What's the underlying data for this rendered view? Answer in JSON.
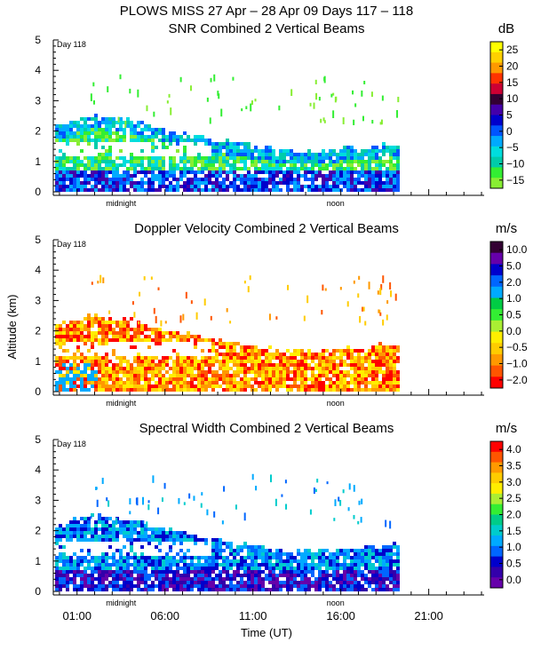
{
  "figure": {
    "title": "PLOWS MISS  27 Apr – 28 Apr 09 Days 117 – 118",
    "ylabel": "Altitude (km)",
    "xlabel": "Time (UT)",
    "x_ticks": [
      "01:00",
      "06:00",
      "11:00",
      "16:00",
      "21:00"
    ],
    "x_tick_hours": [
      1,
      6,
      11,
      16,
      21
    ],
    "markers": [
      "midnight",
      "noon"
    ],
    "day_label": "Day 118",
    "y_ticks": [
      "0",
      "1",
      "2",
      "3",
      "4",
      "5"
    ]
  },
  "chart_data": [
    {
      "type": "heatmap",
      "title": "SNR Combined 2 Vertical Beams",
      "units": "dB",
      "xlabel": "",
      "ylabel": "",
      "xlim": [
        0,
        24
      ],
      "ylim": [
        0,
        5
      ],
      "colorbar_ticks": [
        "25",
        "20",
        "15",
        "10",
        "5",
        "0",
        "−5",
        "−10",
        "−15"
      ],
      "colorbar_values": [
        25,
        20,
        15,
        10,
        5,
        0,
        -5,
        -10,
        -15
      ],
      "colors": [
        "#ffff00",
        "#ffd000",
        "#ff9900",
        "#ff3300",
        "#cc0033",
        "#330033",
        "#4400aa",
        "#0000cc",
        "#0055ff",
        "#00aaff",
        "#00dddd",
        "#00ccaa",
        "#33ee33",
        "#88ee33"
      ],
      "data_top_km": [
        2.0,
        2.2,
        2.4,
        2.3,
        2.2,
        2.0,
        1.9,
        1.8,
        1.6,
        1.5,
        1.4,
        1.3,
        1.2,
        1.2,
        1.2,
        1.3,
        1.3,
        1.4,
        1.5
      ],
      "data_end_hour": 19.3
    },
    {
      "type": "heatmap",
      "title": "Doppler Velocity Combined 2 Vertical Beams",
      "units": "m/s",
      "xlabel": "",
      "ylabel": "Altitude (km)",
      "xlim": [
        0,
        24
      ],
      "ylim": [
        0,
        5
      ],
      "colorbar_ticks": [
        "10.0",
        "5.0",
        "2.0",
        "1.0",
        "0.5",
        "0.0",
        "−0.5",
        "−1.0",
        "−2.0"
      ],
      "colorbar_values": [
        10.0,
        5.0,
        2.0,
        1.0,
        0.5,
        0.0,
        -0.5,
        -1.0,
        -2.0
      ],
      "colors": [
        "#330033",
        "#6600aa",
        "#0000cc",
        "#0066ff",
        "#00aaff",
        "#00cc44",
        "#33ee33",
        "#aaee33",
        "#ffee00",
        "#ffcc00",
        "#ff9900",
        "#ff5500",
        "#ff0000"
      ],
      "data_top_km": [
        2.0,
        2.2,
        2.4,
        2.3,
        2.2,
        2.0,
        1.9,
        1.8,
        1.6,
        1.5,
        1.4,
        1.3,
        1.2,
        1.2,
        1.2,
        1.3,
        1.3,
        1.4,
        1.5
      ],
      "data_end_hour": 19.3
    },
    {
      "type": "heatmap",
      "title": "Spectral Width Combined 2 Vertical Beams",
      "units": "m/s",
      "xlabel": "Time (UT)",
      "ylabel": "",
      "xlim": [
        0,
        24
      ],
      "ylim": [
        0,
        5
      ],
      "colorbar_ticks": [
        "4.0",
        "3.5",
        "3.0",
        "2.5",
        "2.0",
        "1.5",
        "1.0",
        "0.5",
        "0.0"
      ],
      "colorbar_values": [
        4.0,
        3.5,
        3.0,
        2.5,
        2.0,
        1.5,
        1.0,
        0.5,
        0.0
      ],
      "colors": [
        "#ff0000",
        "#ff5500",
        "#ff9900",
        "#ffcc00",
        "#ffee00",
        "#aaee33",
        "#33ee33",
        "#00cc88",
        "#00cccc",
        "#00aaff",
        "#0066ff",
        "#0000cc",
        "#3300aa",
        "#6600aa"
      ],
      "data_top_km": [
        2.0,
        2.2,
        2.4,
        2.3,
        2.2,
        2.0,
        1.9,
        1.8,
        1.6,
        1.5,
        1.4,
        1.3,
        1.2,
        1.2,
        1.2,
        1.3,
        1.3,
        1.4,
        1.5
      ],
      "data_end_hour": 19.3
    }
  ]
}
